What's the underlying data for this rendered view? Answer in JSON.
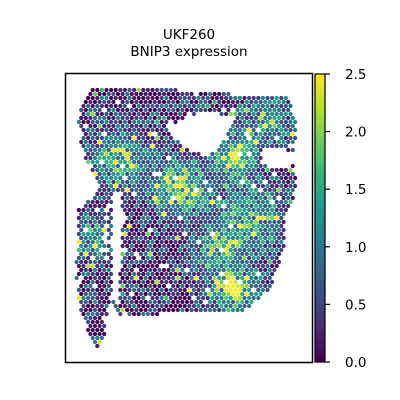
{
  "chart_data": {
    "type": "scatter",
    "subtype": "spatial-hexbin",
    "title_lines": [
      "UKF260",
      "BNIP3 expression"
    ],
    "xlabel": "",
    "ylabel": "",
    "x_ticks_visible": false,
    "y_ticks_visible": false,
    "colorbar": {
      "colormap": "viridis",
      "range": [
        0.0,
        2.5
      ],
      "ticks": [
        "0.0",
        "0.5",
        "1.0",
        "1.5",
        "2.0",
        "2.5"
      ],
      "tick_values": [
        0.0,
        0.5,
        1.0,
        1.5,
        2.0,
        2.5
      ]
    },
    "colormap_stops": [
      "#440154",
      "#482777",
      "#3e4989",
      "#31688e",
      "#26828e",
      "#1f9e89",
      "#35b779",
      "#6ece58",
      "#b5de2b",
      "#fde725"
    ],
    "point_color_note": "viridis",
    "grid": false,
    "legend": "none"
  }
}
